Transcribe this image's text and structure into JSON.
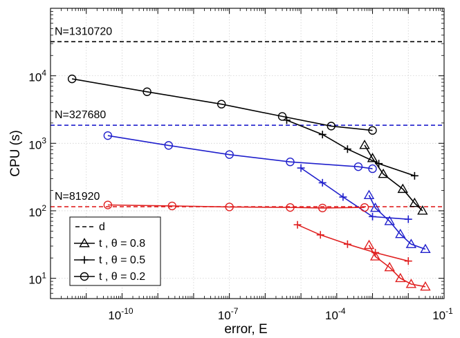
{
  "chart_data": {
    "type": "line",
    "xscale": "log",
    "yscale": "log",
    "xlim": [
      1e-12,
      0.1
    ],
    "ylim": [
      5,
      100000
    ],
    "xlabel": "error, E",
    "ylabel": "CPU (s)",
    "xticks": [
      {
        "value": 1e-10,
        "base": "10",
        "exp": "-10"
      },
      {
        "value": 1e-07,
        "base": "10",
        "exp": "-7"
      },
      {
        "value": 0.0001,
        "base": "10",
        "exp": "-4"
      },
      {
        "value": 0.1,
        "base": "10",
        "exp": "-1"
      }
    ],
    "yticks": [
      {
        "value": 10,
        "base": "10",
        "exp": "1"
      },
      {
        "value": 100,
        "base": "10",
        "exp": "2"
      },
      {
        "value": 1000,
        "base": "10",
        "exp": "3"
      },
      {
        "value": 10000,
        "base": "10",
        "exp": "4"
      }
    ],
    "grid": true,
    "legend": {
      "position": "bottom-left",
      "entries": [
        {
          "label": "d",
          "marker": "none",
          "dash": true
        },
        {
          "label": "t , θ = 0.8",
          "marker": "triangle",
          "dash": false
        },
        {
          "label": "t , θ = 0.5",
          "marker": "plus",
          "dash": false
        },
        {
          "label": "t , θ = 0.2",
          "marker": "circle",
          "dash": false
        }
      ]
    },
    "reference_lines": [
      {
        "name": "d-N1310720",
        "label": "N=1310720",
        "y": 32000,
        "color": "#000000"
      },
      {
        "name": "d-N327680",
        "label": "N=327680",
        "y": 1850,
        "color": "#1f1fcc"
      },
      {
        "name": "d-N81920",
        "label": "N=81920",
        "y": 115,
        "color": "#e02020"
      }
    ],
    "series": [
      {
        "name": "black-theta-0.2",
        "N": "1310720",
        "theta": "0.2",
        "marker": "circle",
        "color": "#000000",
        "x": [
          4e-12,
          5e-10,
          6e-08,
          3e-06,
          7e-05,
          0.001
        ],
        "y": [
          9000,
          5800,
          3800,
          2500,
          1800,
          1550
        ]
      },
      {
        "name": "black-theta-0.5",
        "N": "1310720",
        "theta": "0.5",
        "marker": "plus",
        "color": "#000000",
        "x": [
          4e-06,
          4e-05,
          0.0002,
          0.0015,
          0.015
        ],
        "y": [
          2200,
          1350,
          820,
          500,
          330
        ]
      },
      {
        "name": "black-theta-0.8",
        "N": "1310720",
        "theta": "0.8",
        "marker": "triangle",
        "color": "#000000",
        "x": [
          0.0006,
          0.001,
          0.002,
          0.007,
          0.015,
          0.025
        ],
        "y": [
          940,
          600,
          350,
          210,
          130,
          100
        ]
      },
      {
        "name": "blue-theta-0.2",
        "N": "327680",
        "theta": "0.2",
        "marker": "circle",
        "color": "#1f1fcc",
        "x": [
          4e-11,
          2e-09,
          1e-07,
          5e-06,
          0.0004,
          0.001
        ],
        "y": [
          1300,
          930,
          680,
          530,
          450,
          420
        ]
      },
      {
        "name": "blue-theta-0.5",
        "N": "327680",
        "theta": "0.5",
        "marker": "plus",
        "color": "#1f1fcc",
        "x": [
          1e-05,
          4e-05,
          0.00015,
          0.001,
          0.01
        ],
        "y": [
          430,
          260,
          160,
          82,
          75
        ]
      },
      {
        "name": "blue-theta-0.8",
        "N": "327680",
        "theta": "0.8",
        "marker": "triangle",
        "color": "#1f1fcc",
        "x": [
          0.0008,
          0.0012,
          0.003,
          0.006,
          0.012,
          0.03
        ],
        "y": [
          170,
          110,
          70,
          45,
          32,
          27
        ]
      },
      {
        "name": "red-theta-0.2",
        "N": "81920",
        "theta": "0.2",
        "marker": "circle",
        "color": "#e02020",
        "x": [
          4e-11,
          2.5e-09,
          1e-07,
          5e-06,
          4e-05,
          0.0006
        ],
        "y": [
          122,
          118,
          114,
          112,
          110,
          112
        ]
      },
      {
        "name": "red-theta-0.5",
        "N": "81920",
        "theta": "0.5",
        "marker": "plus",
        "color": "#e02020",
        "x": [
          8e-06,
          3.5e-05,
          0.0002,
          0.0012,
          0.01
        ],
        "y": [
          62,
          44,
          32,
          24,
          18
        ]
      },
      {
        "name": "red-theta-0.8",
        "N": "81920",
        "theta": "0.8",
        "marker": "triangle",
        "color": "#e02020",
        "x": [
          0.0008,
          0.0012,
          0.003,
          0.006,
          0.012,
          0.03
        ],
        "y": [
          31,
          21,
          14.5,
          10,
          8.2,
          7.5
        ]
      }
    ]
  }
}
